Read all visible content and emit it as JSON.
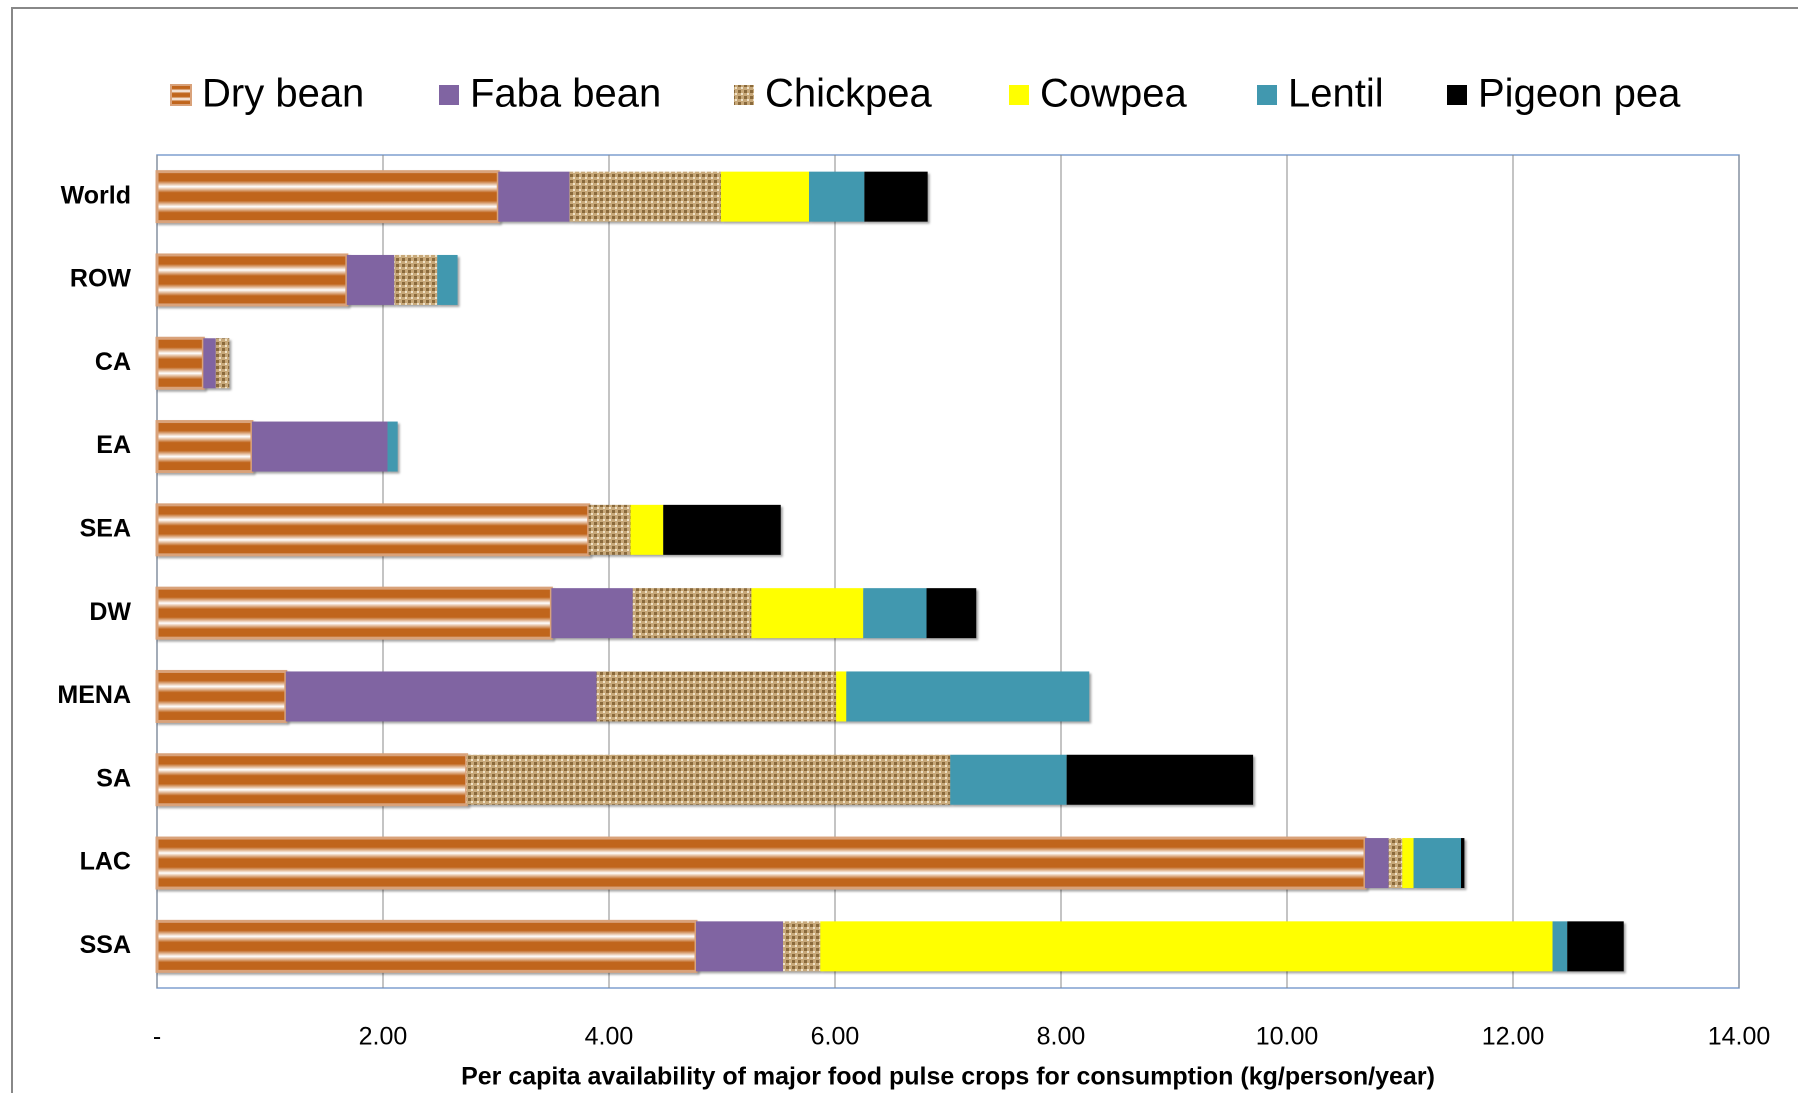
{
  "chart_data": {
    "type": "stacked-bar-horizontal",
    "x_label": "Per capita availability of major food pulse crops for consumption (kg/person/year)",
    "categories": [
      "World",
      "ROW",
      "CA",
      "EA",
      "SEA",
      "DW",
      "MENA",
      "SA",
      "LAC",
      "SSA"
    ],
    "series": [
      {
        "name": "Dry bean",
        "color": "#c0651c",
        "pattern": "horizontal-stripes",
        "values": [
          3.02,
          1.68,
          0.41,
          0.84,
          3.82,
          3.49,
          1.14,
          2.74,
          10.69,
          4.77
        ]
      },
      {
        "name": "Faba bean",
        "color": "#8064a2",
        "values": [
          0.63,
          0.42,
          0.11,
          1.2,
          0,
          0.72,
          2.75,
          0,
          0.21,
          0.77
        ]
      },
      {
        "name": "Chickpea",
        "color": "#c8a97a",
        "pattern": "dots",
        "values": [
          1.34,
          0.38,
          0.12,
          0,
          0.37,
          1.05,
          2.12,
          4.28,
          0.12,
          0.33
        ]
      },
      {
        "name": "Cowpea",
        "color": "#ffff00",
        "values": [
          0.78,
          0,
          0,
          0,
          0.29,
          0.99,
          0.09,
          0,
          0.1,
          6.48
        ]
      },
      {
        "name": "Lentil",
        "color": "#4198af",
        "values": [
          0.49,
          0.18,
          0,
          0.09,
          0,
          0.56,
          2.15,
          1.03,
          0.42,
          0.13
        ]
      },
      {
        "name": "Pigeon pea",
        "color": "#000000",
        "values": [
          0.56,
          0,
          0,
          0,
          1.04,
          0.44,
          0,
          1.65,
          0.03,
          0.5
        ]
      }
    ],
    "xlim": [
      0,
      14
    ],
    "xticks": [
      {
        "value": 0,
        "label": "-"
      },
      {
        "value": 2,
        "label": "2.00"
      },
      {
        "value": 4,
        "label": "4.00"
      },
      {
        "value": 6,
        "label": "6.00"
      },
      {
        "value": 8,
        "label": "8.00"
      },
      {
        "value": 10,
        "label": "10.00"
      },
      {
        "value": 12,
        "label": "12.00"
      },
      {
        "value": 14,
        "label": "14.00"
      }
    ],
    "grid": true,
    "legend": "top"
  }
}
